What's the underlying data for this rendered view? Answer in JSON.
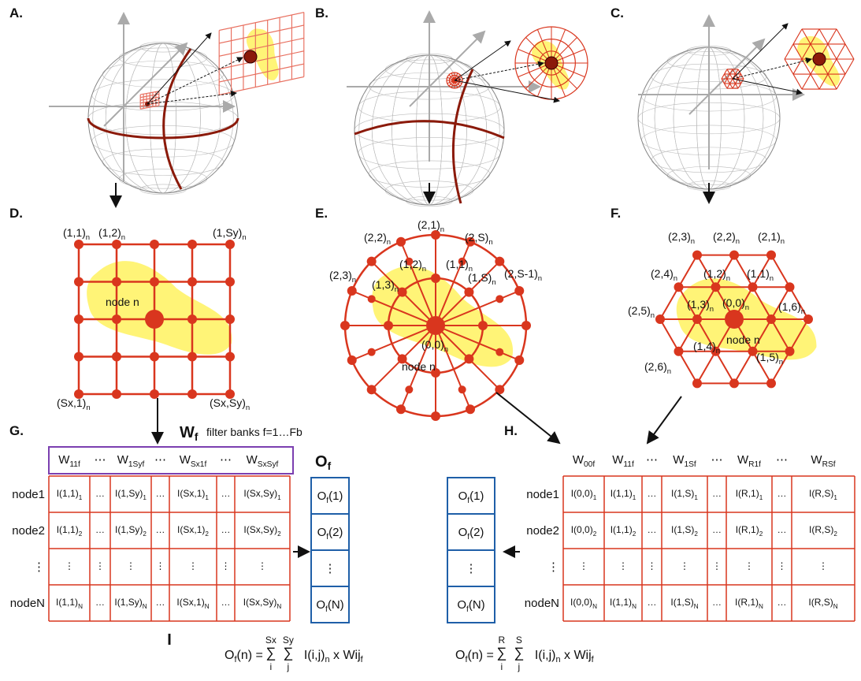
{
  "panel_labels": [
    "A.",
    "B.",
    "C.",
    "D.",
    "E.",
    "F.",
    "G.",
    "H."
  ],
  "grid_d": {
    "labels": [
      [
        "(1,1)",
        {
          "sub": "n"
        }
      ],
      [
        "(1,2)",
        {
          "sub": "n"
        }
      ],
      [
        "(1,Sy)",
        {
          "sub": "n"
        }
      ],
      [
        "(Sx,1)",
        {
          "sub": "n"
        }
      ],
      [
        "(Sx,Sy)",
        {
          "sub": "n"
        }
      ]
    ],
    "center": "node n"
  },
  "polar_e": {
    "labels": [
      [
        "(2,1)",
        {
          "sub": "n"
        }
      ],
      [
        "(2,2)",
        {
          "sub": "n"
        }
      ],
      [
        "(2,S)",
        {
          "sub": "n"
        }
      ],
      [
        "(2,3)",
        {
          "sub": "n"
        }
      ],
      [
        "(1,2)",
        {
          "sub": "n"
        }
      ],
      [
        "(1,1)",
        {
          "sub": "n"
        }
      ],
      [
        "(2,S-1)",
        {
          "sub": "n"
        }
      ],
      [
        "(1,S)",
        {
          "sub": "n"
        }
      ],
      [
        "(1,3)",
        {
          "sub": "n"
        }
      ],
      [
        "(0,0)",
        {
          "sub": "n"
        }
      ]
    ],
    "center": "node n"
  },
  "hex_f": {
    "labels": [
      [
        "(2,3)",
        {
          "sub": "n"
        }
      ],
      [
        "(2,2)",
        {
          "sub": "n"
        }
      ],
      [
        "(2,1)",
        {
          "sub": "n"
        }
      ],
      [
        "(2,4)",
        {
          "sub": "n"
        }
      ],
      [
        "(1,2)",
        {
          "sub": "n"
        }
      ],
      [
        "(1,1)",
        {
          "sub": "n"
        }
      ],
      [
        "(2,5)",
        {
          "sub": "n"
        }
      ],
      [
        "(1,3)",
        {
          "sub": "n"
        }
      ],
      [
        "(0,0)",
        {
          "sub": "n"
        }
      ],
      [
        "(1,6)",
        {
          "sub": "n"
        }
      ],
      [
        "(1,4)",
        {
          "sub": "n"
        }
      ],
      [
        "(1,5)",
        {
          "sub": "n"
        }
      ],
      [
        "(2,6)",
        {
          "sub": "n"
        }
      ]
    ],
    "center": "node n"
  },
  "table_g": {
    "weights_title": [
      "W",
      {
        "sub": "f"
      }
    ],
    "weights_caption": "filter banks f=1…Fb",
    "weights": [
      [
        "W",
        {
          "sub": "11f"
        }
      ],
      "⋯",
      [
        "W",
        {
          "sub": "1Syf"
        }
      ],
      "⋯",
      [
        "W",
        {
          "sub": "Sx1f"
        }
      ],
      "⋯",
      [
        "W",
        {
          "sub": "SxSyf"
        }
      ]
    ],
    "rows": [
      "node1",
      "node2",
      "⋮",
      "nodeN"
    ],
    "cells": [
      [
        [
          "I(1,1)",
          {
            "sub": "1"
          }
        ],
        "…",
        [
          "I(1,Sy)",
          {
            "sub": "1"
          }
        ],
        "…",
        [
          "I(Sx,1)",
          {
            "sub": "1"
          }
        ],
        "…",
        [
          "I(Sx,Sy)",
          {
            "sub": "1"
          }
        ]
      ],
      [
        [
          "I(1,1)",
          {
            "sub": "2"
          }
        ],
        "…",
        [
          "I(1,Sy)",
          {
            "sub": "2"
          }
        ],
        "…",
        [
          "I(Sx,1)",
          {
            "sub": "2"
          }
        ],
        "…",
        [
          "I(Sx,Sy)",
          {
            "sub": "2"
          }
        ]
      ],
      [
        "⋮",
        "⋮",
        "⋮",
        "⋮",
        "⋮",
        "⋮",
        "⋮"
      ],
      [
        [
          "I(1,1)",
          {
            "sub": "N"
          }
        ],
        "…",
        [
          "I(1,Sy)",
          {
            "sub": "N"
          }
        ],
        "…",
        [
          "I(Sx,1)",
          {
            "sub": "N"
          }
        ],
        "…",
        [
          "I(Sx,Sy)",
          {
            "sub": "N"
          }
        ]
      ]
    ],
    "input_label": "I",
    "output_title": [
      "O",
      {
        "sub": "f"
      }
    ],
    "outputs": [
      [
        "O",
        {
          "sub": "f"
        },
        "(1)"
      ],
      [
        "O",
        {
          "sub": "f"
        },
        "(2)"
      ],
      "⋮",
      [
        "O",
        {
          "sub": "f"
        },
        "(N)"
      ]
    ],
    "formula": {
      "lhs": [
        "O",
        {
          "sub": "f"
        },
        "(n) ="
      ],
      "sums": [
        {
          "sigma": "∑",
          "top": "Sx",
          "bottom": "i"
        },
        {
          "sigma": "∑",
          "top": "Sy",
          "bottom": "j"
        }
      ],
      "term": [
        "I(i,j)",
        {
          "sub": "n"
        },
        " x Wij",
        {
          "sub": "f"
        }
      ]
    }
  },
  "table_h": {
    "weights": [
      [
        "W",
        {
          "sub": "00f"
        }
      ],
      [
        "W",
        {
          "sub": "11f"
        }
      ],
      "⋯",
      [
        "W",
        {
          "sub": "1Sf"
        }
      ],
      "⋯",
      [
        "W",
        {
          "sub": "R1f"
        }
      ],
      "⋯",
      [
        "W",
        {
          "sub": "RSf"
        }
      ]
    ],
    "rows": [
      "node1",
      "node2",
      "⋮",
      "nodeN"
    ],
    "cells": [
      [
        [
          "I(0,0)",
          {
            "sub": "1"
          }
        ],
        [
          "I(1,1)",
          {
            "sub": "1"
          }
        ],
        "…",
        [
          "I(1,S)",
          {
            "sub": "1"
          }
        ],
        "…",
        [
          "I(R,1)",
          {
            "sub": "1"
          }
        ],
        "…",
        [
          "I(R,S)",
          {
            "sub": "1"
          }
        ]
      ],
      [
        [
          "I(0,0)",
          {
            "sub": "2"
          }
        ],
        [
          "I(1,1)",
          {
            "sub": "2"
          }
        ],
        "…",
        [
          "I(1,S)",
          {
            "sub": "2"
          }
        ],
        "…",
        [
          "I(R,1)",
          {
            "sub": "2"
          }
        ],
        "…",
        [
          "I(R,S)",
          {
            "sub": "2"
          }
        ]
      ],
      [
        "⋮",
        "⋮",
        "⋮",
        "⋮",
        "⋮",
        "⋮",
        "⋮",
        "⋮"
      ],
      [
        [
          "I(0,0)",
          {
            "sub": "N"
          }
        ],
        [
          "I(1,1)",
          {
            "sub": "N"
          }
        ],
        "…",
        [
          "I(1,S)",
          {
            "sub": "N"
          }
        ],
        "…",
        [
          "I(R,1)",
          {
            "sub": "N"
          }
        ],
        "…",
        [
          "I(R,S)",
          {
            "sub": "N"
          }
        ]
      ]
    ],
    "outputs": [
      [
        "O",
        {
          "sub": "f"
        },
        "(1)"
      ],
      [
        "O",
        {
          "sub": "f"
        },
        "(2)"
      ],
      "⋮",
      [
        "O",
        {
          "sub": "f"
        },
        "(N)"
      ]
    ],
    "formula": {
      "lhs": [
        "O",
        {
          "sub": "f"
        },
        "(n) ="
      ],
      "sums": [
        {
          "sigma": "∑",
          "top": "R",
          "bottom": "i"
        },
        {
          "sigma": "∑",
          "top": "S",
          "bottom": "j"
        }
      ],
      "term": [
        "I(i,j)",
        {
          "sub": "n"
        },
        " x Wij",
        {
          "sub": "f"
        }
      ]
    }
  }
}
